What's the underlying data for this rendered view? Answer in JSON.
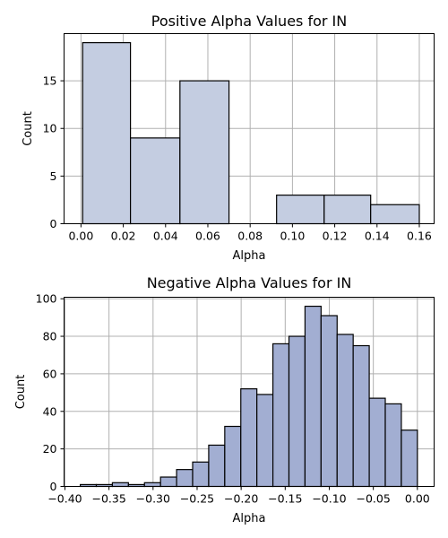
{
  "chart_data": [
    {
      "type": "bar",
      "title": "Positive Alpha Values for IN",
      "xlabel": "Alpha",
      "ylabel": "Count",
      "xlim": [
        -0.008,
        0.167
      ],
      "ylim": [
        0,
        19.95
      ],
      "xticks": [
        0.0,
        0.02,
        0.04,
        0.06,
        0.08,
        0.1,
        0.12,
        0.14,
        0.16
      ],
      "xtick_labels": [
        "0.00",
        "0.02",
        "0.04",
        "0.06",
        "0.08",
        "0.10",
        "0.12",
        "0.14",
        "0.16"
      ],
      "yticks": [
        0,
        5,
        10,
        15
      ],
      "ytick_labels": [
        "0",
        "5",
        "10",
        "15"
      ],
      "bins": [
        {
          "x0": 0.0008,
          "x1": 0.0234,
          "count": 19
        },
        {
          "x0": 0.0234,
          "x1": 0.0468,
          "count": 9
        },
        {
          "x0": 0.0468,
          "x1": 0.07,
          "count": 15
        },
        {
          "x0": 0.07,
          "x1": 0.0925,
          "count": 0
        },
        {
          "x0": 0.0925,
          "x1": 0.115,
          "count": 3
        },
        {
          "x0": 0.115,
          "x1": 0.137,
          "count": 3
        },
        {
          "x0": 0.137,
          "x1": 0.16,
          "count": 2
        }
      ],
      "bar_color": "#c4cde1",
      "grid": true
    },
    {
      "type": "bar",
      "title": "Negative Alpha Values for IN",
      "xlabel": "Alpha",
      "ylabel": "Count",
      "xlim": [
        -0.401,
        0.019
      ],
      "ylim": [
        0,
        100.8
      ],
      "xticks": [
        -0.4,
        -0.35,
        -0.3,
        -0.25,
        -0.2,
        -0.15,
        -0.1,
        -0.05,
        0.0
      ],
      "xtick_labels": [
        "−0.40",
        "−0.35",
        "−0.30",
        "−0.25",
        "−0.20",
        "−0.15",
        "−0.10",
        "−0.05",
        "0.00"
      ],
      "yticks": [
        0,
        20,
        40,
        60,
        80,
        100
      ],
      "ytick_labels": [
        "0",
        "20",
        "40",
        "60",
        "80",
        "100"
      ],
      "bin_start": -0.3826,
      "bin_width": 0.01822,
      "counts": [
        1,
        1,
        2,
        1,
        2,
        5,
        9,
        13,
        22,
        32,
        52,
        49,
        76,
        80,
        96,
        91,
        81,
        75,
        47,
        44,
        30
      ],
      "bar_color": "#a2aed2",
      "grid": true
    }
  ]
}
